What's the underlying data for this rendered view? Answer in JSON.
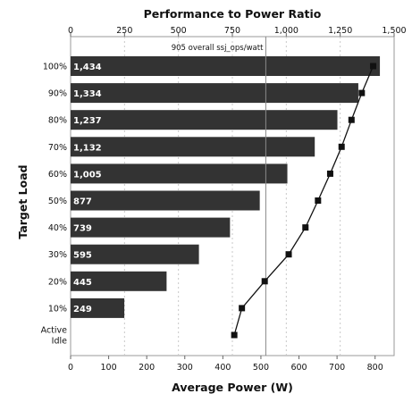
{
  "chart_data": {
    "type": "bar",
    "title": "Performance to Power Ratio",
    "xlabel": "Average Power (W)",
    "ylabel": "Target Load",
    "top_axis": {
      "range": [
        0,
        1500
      ],
      "ticks": [
        0,
        250,
        500,
        750,
        1000,
        1250,
        1500
      ],
      "tick_labels": [
        "0",
        "250",
        "500",
        "750",
        "1,000",
        "1,250",
        "1,500"
      ]
    },
    "bottom_axis": {
      "range": [
        0,
        850
      ],
      "ticks": [
        0,
        100,
        200,
        300,
        400,
        500,
        600,
        700,
        800
      ],
      "tick_labels": [
        "0",
        "100",
        "200",
        "300",
        "400",
        "500",
        "600",
        "700",
        "800"
      ]
    },
    "categories": [
      "100%",
      "90%",
      "80%",
      "70%",
      "60%",
      "50%",
      "40%",
      "30%",
      "20%",
      "10%",
      "Active Idle"
    ],
    "category_labels": [
      [
        "100%"
      ],
      [
        "90%"
      ],
      [
        "80%"
      ],
      [
        "70%"
      ],
      [
        "60%"
      ],
      [
        "50%"
      ],
      [
        "40%"
      ],
      [
        "30%"
      ],
      [
        "20%"
      ],
      [
        "10%"
      ],
      [
        "Active",
        "Idle"
      ]
    ],
    "performance_to_power": {
      "values": [
        1434,
        1334,
        1237,
        1132,
        1005,
        877,
        739,
        595,
        445,
        249,
        null
      ],
      "labels": [
        "1,434",
        "1,334",
        "1,237",
        "1,132",
        "1,005",
        "877",
        "739",
        "595",
        "445",
        "249",
        ""
      ],
      "color": "#333333"
    },
    "average_power": {
      "values": [
        795,
        765,
        738,
        712,
        682,
        650,
        617,
        573,
        510,
        450,
        430
      ],
      "color": "#111111"
    },
    "overall": {
      "value": 905,
      "label": "905 overall ssj_ops/watt"
    },
    "grid": true,
    "grid_style": "dashed vertical"
  }
}
